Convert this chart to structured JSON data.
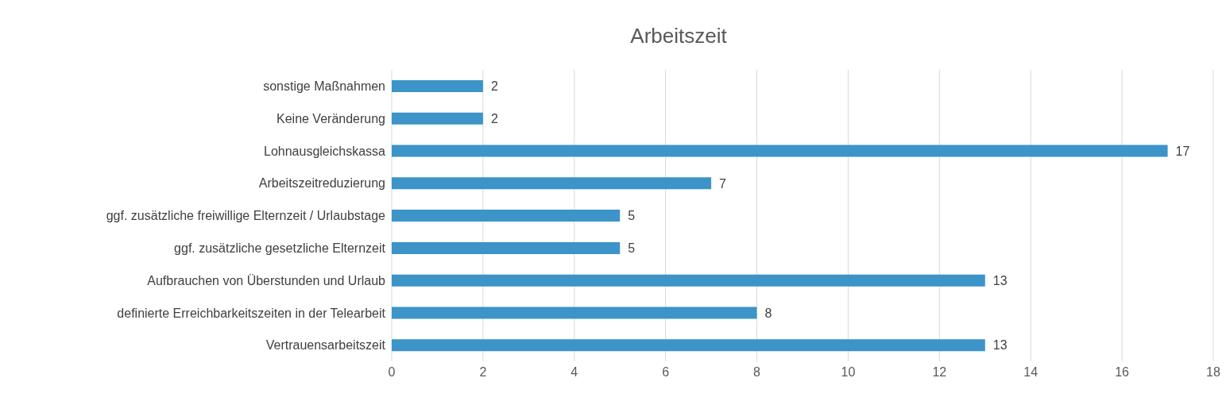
{
  "chart_data": {
    "type": "bar",
    "orientation": "horizontal",
    "title": "Arbeitszeit",
    "categories": [
      "sonstige Maßnahmen",
      "Keine Veränderung",
      "Lohnausgleichskassa",
      "Arbeitszeitreduzierung",
      "ggf. zusätzliche freiwillige Elternzeit / Urlaubstage",
      "ggf. zusätzliche gesetzliche Elternzeit",
      "Aufbrauchen von Überstunden und Urlaub",
      "definierte Erreichbarkeitszeiten in der Telearbeit",
      "Vertrauensarbeitszeit"
    ],
    "values": [
      2,
      2,
      17,
      7,
      5,
      5,
      13,
      8,
      13
    ],
    "color": "#3c94c9",
    "xlim": [
      0,
      18
    ],
    "xticks": [
      0,
      2,
      4,
      6,
      8,
      10,
      12,
      14,
      16,
      18
    ],
    "grid": "x",
    "data_labels": true
  }
}
